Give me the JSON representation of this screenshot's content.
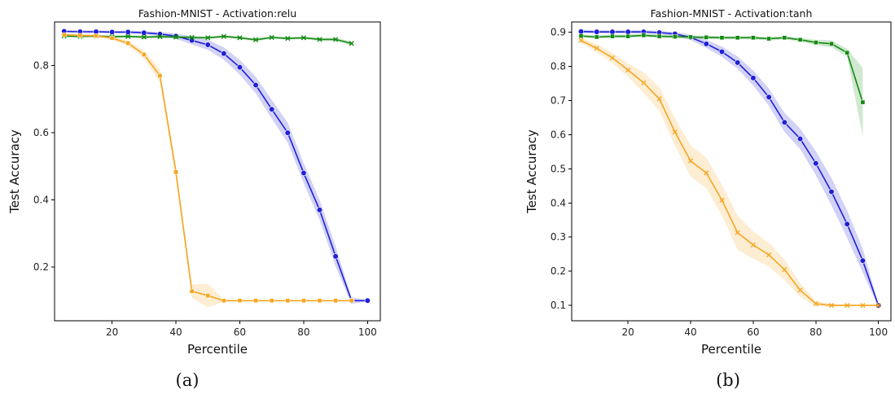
{
  "colors": {
    "blue": "#1f1fd6",
    "green": "#138a13",
    "orange": "#f5a623"
  },
  "chart_data": [
    {
      "type": "line",
      "title": "Fashion-MNIST - Activation:relu",
      "caption": "(a)",
      "xlabel": "Percentile",
      "ylabel": "Test Accuracy",
      "xlim": [
        2,
        104
      ],
      "ylim": [
        0.04,
        0.93
      ],
      "xticks": [
        20,
        40,
        60,
        80,
        100
      ],
      "yticks": [
        0.2,
        0.4,
        0.6,
        0.8
      ],
      "grid": false,
      "series": [
        {
          "color": "blue",
          "marker": "circle",
          "x": [
            5,
            10,
            15,
            20,
            25,
            30,
            35,
            40,
            45,
            50,
            55,
            60,
            65,
            70,
            75,
            80,
            85,
            90,
            95,
            100
          ],
          "y": [
            0.902,
            0.901,
            0.901,
            0.9,
            0.9,
            0.898,
            0.894,
            0.888,
            0.875,
            0.862,
            0.836,
            0.795,
            0.742,
            0.67,
            0.6,
            0.48,
            0.37,
            0.232,
            0.1,
            0.1
          ],
          "band": [
            0.004,
            0.004,
            0.004,
            0.004,
            0.004,
            0.005,
            0.006,
            0.008,
            0.012,
            0.015,
            0.018,
            0.022,
            0.025,
            0.028,
            0.03,
            0.03,
            0.03,
            0.03,
            0.01,
            0.002
          ]
        },
        {
          "color": "green",
          "marker": "x",
          "x": [
            5,
            10,
            15,
            20,
            25,
            30,
            35,
            40,
            45,
            50,
            55,
            60,
            65,
            70,
            75,
            80,
            85,
            90,
            95
          ],
          "y": [
            0.888,
            0.887,
            0.888,
            0.886,
            0.887,
            0.885,
            0.886,
            0.885,
            0.884,
            0.883,
            0.887,
            0.883,
            0.877,
            0.884,
            0.881,
            0.883,
            0.878,
            0.878,
            0.866
          ],
          "band": [
            0.004,
            0.004,
            0.004,
            0.004,
            0.004,
            0.004,
            0.004,
            0.004,
            0.004,
            0.004,
            0.004,
            0.004,
            0.005,
            0.004,
            0.004,
            0.004,
            0.005,
            0.005,
            0.006
          ]
        },
        {
          "color": "orange",
          "marker": "square",
          "x": [
            5,
            10,
            15,
            20,
            25,
            30,
            35,
            40,
            45,
            50,
            55,
            60,
            65,
            70,
            75,
            80,
            85,
            90,
            95
          ],
          "y": [
            0.892,
            0.89,
            0.889,
            0.882,
            0.867,
            0.833,
            0.77,
            0.483,
            0.128,
            0.115,
            0.1,
            0.1,
            0.1,
            0.1,
            0.1,
            0.1,
            0.1,
            0.1,
            0.1
          ],
          "band": [
            0.004,
            0.004,
            0.004,
            0.006,
            0.008,
            0.012,
            0.02,
            0.02,
            0.02,
            0.035,
            0.004,
            0.002,
            0.002,
            0.002,
            0.002,
            0.002,
            0.002,
            0.002,
            0.002
          ]
        }
      ]
    },
    {
      "type": "line",
      "title": "Fashion-MNIST - Activation:tanh",
      "caption": "(b)",
      "xlabel": "Percentile",
      "ylabel": "Test Accuracy",
      "xlim": [
        2,
        104
      ],
      "ylim": [
        0.055,
        0.93
      ],
      "xticks": [
        20,
        40,
        60,
        80,
        100
      ],
      "yticks": [
        0.1,
        0.2,
        0.3,
        0.4,
        0.5,
        0.6,
        0.7,
        0.8,
        0.9
      ],
      "grid": false,
      "series": [
        {
          "color": "blue",
          "marker": "circle",
          "x": [
            5,
            10,
            15,
            20,
            25,
            30,
            35,
            40,
            45,
            50,
            55,
            60,
            65,
            70,
            75,
            80,
            85,
            90,
            95,
            100
          ],
          "y": [
            0.902,
            0.901,
            0.901,
            0.901,
            0.901,
            0.899,
            0.895,
            0.885,
            0.866,
            0.843,
            0.811,
            0.766,
            0.71,
            0.636,
            0.588,
            0.516,
            0.433,
            0.338,
            0.231,
            0.1
          ],
          "band": [
            0.005,
            0.005,
            0.005,
            0.005,
            0.005,
            0.005,
            0.006,
            0.008,
            0.012,
            0.015,
            0.018,
            0.022,
            0.025,
            0.028,
            0.03,
            0.035,
            0.04,
            0.04,
            0.035,
            0.005
          ]
        },
        {
          "color": "green",
          "marker": "square",
          "x": [
            5,
            10,
            15,
            20,
            25,
            30,
            35,
            40,
            45,
            50,
            55,
            60,
            65,
            70,
            75,
            80,
            85,
            90,
            95
          ],
          "y": [
            0.889,
            0.886,
            0.888,
            0.888,
            0.891,
            0.888,
            0.887,
            0.886,
            0.885,
            0.884,
            0.884,
            0.884,
            0.881,
            0.884,
            0.878,
            0.87,
            0.866,
            0.84,
            0.695
          ],
          "band": [
            0.005,
            0.005,
            0.005,
            0.005,
            0.005,
            0.005,
            0.005,
            0.005,
            0.005,
            0.005,
            0.005,
            0.005,
            0.005,
            0.005,
            0.006,
            0.008,
            0.01,
            0.012,
            0.1
          ]
        },
        {
          "color": "orange",
          "marker": "x",
          "x": [
            5,
            10,
            15,
            20,
            25,
            30,
            35,
            40,
            45,
            50,
            55,
            60,
            65,
            70,
            75,
            80,
            85,
            90,
            95,
            100
          ],
          "y": [
            0.876,
            0.853,
            0.825,
            0.789,
            0.752,
            0.705,
            0.608,
            0.523,
            0.488,
            0.408,
            0.313,
            0.277,
            0.248,
            0.205,
            0.145,
            0.105,
            0.1,
            0.1,
            0.1,
            0.1
          ],
          "band": [
            0.008,
            0.012,
            0.015,
            0.02,
            0.03,
            0.035,
            0.04,
            0.045,
            0.045,
            0.045,
            0.05,
            0.04,
            0.035,
            0.03,
            0.02,
            0.008,
            0.004,
            0.002,
            0.002,
            0.002
          ]
        }
      ]
    }
  ]
}
